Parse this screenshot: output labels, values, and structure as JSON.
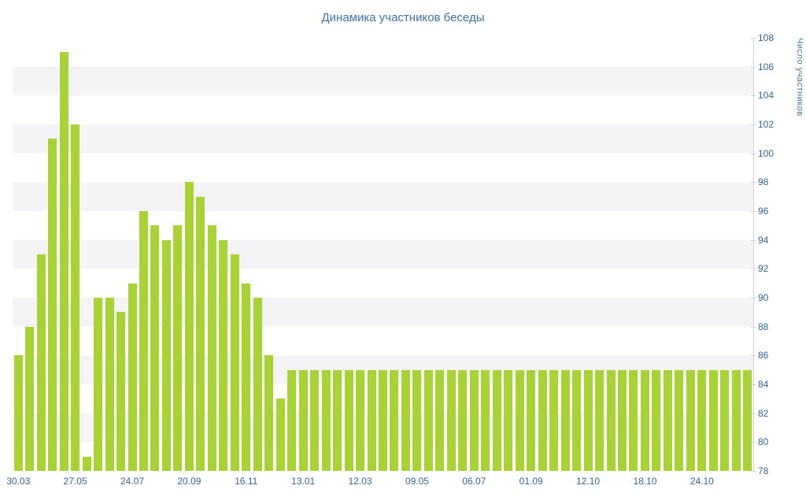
{
  "chart_data": {
    "type": "bar",
    "title": "Динамика участников беседы",
    "xlabel": "",
    "ylabel": "Число участников",
    "ylim": [
      78,
      108
    ],
    "ytick_step": 2,
    "grid": "horizontal-stripes",
    "legend": "none",
    "bar_color": "#a9d335",
    "stripe_color": "#f4f4f6",
    "axis_color": "#cfd3d8",
    "tick_label_color": "#31659b",
    "title_color": "#3d72a4",
    "x_tick_labels": [
      "30.03",
      "27.05",
      "24.07",
      "20.09",
      "16.11",
      "13.01",
      "12.03",
      "09.05",
      "06.07",
      "01.09",
      "12.10",
      "18.10",
      "24.10"
    ],
    "x_label_every": 5,
    "values": [
      86,
      88,
      93,
      101,
      107,
      102,
      79,
      90,
      90,
      89,
      91,
      96,
      95,
      94,
      95,
      98,
      97,
      95,
      94,
      93,
      91,
      90,
      86,
      83,
      85,
      85,
      85,
      85,
      85,
      85,
      85,
      85,
      85,
      85,
      85,
      85,
      85,
      85,
      85,
      85,
      85,
      85,
      85,
      85,
      85,
      85,
      85,
      85,
      85,
      85,
      85,
      85,
      85,
      85,
      85,
      85,
      85,
      85,
      85,
      85,
      85,
      85,
      85,
      85,
      85
    ]
  }
}
